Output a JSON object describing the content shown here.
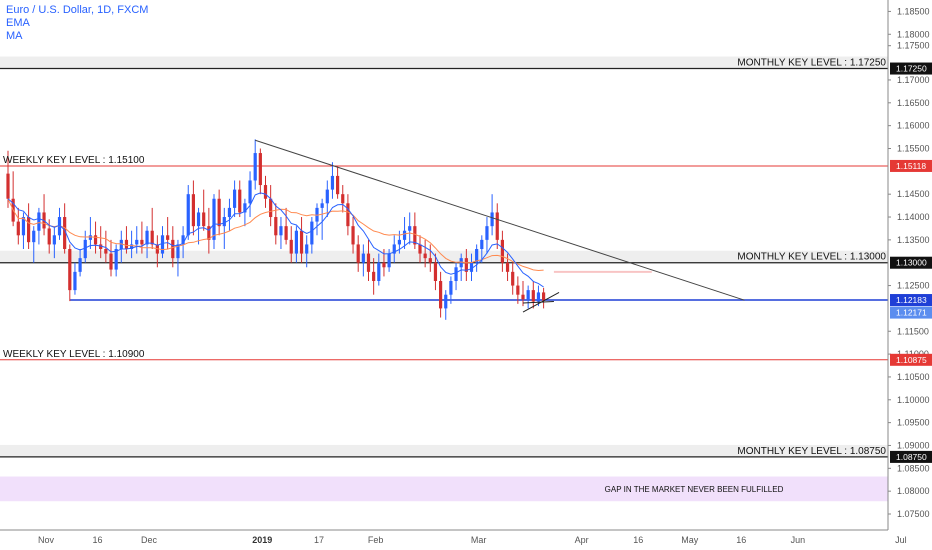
{
  "legend": {
    "symbol": "Euro / U.S. Dollar, 1D, FXCM",
    "ema": "EMA",
    "ma": "MA"
  },
  "colors": {
    "up": "#2962ff",
    "down": "#d32f2f",
    "ema": "#2962ff",
    "ma": "#ff8a50",
    "weekly_line": "#e53935",
    "monthly_line": "#222222",
    "blue_line": "#1f3fd6",
    "trendline": "#444444",
    "band": "#eeeeee",
    "gap_band": "#f1e0fb"
  },
  "chart_data": {
    "type": "candlestick",
    "symbol": "Euro / U.S. Dollar",
    "timeframe": "1D",
    "source": "FXCM",
    "ylim": [
      1.0715,
      1.1875
    ],
    "y_ticks": [
      1.185,
      1.18,
      1.1775,
      1.17,
      1.165,
      1.16,
      1.155,
      1.145,
      1.14,
      1.135,
      1.125,
      1.115,
      1.11,
      1.105,
      1.1,
      1.095,
      1.09,
      1.085,
      1.08,
      1.075
    ],
    "y_tick_labels": [
      "1.18500",
      "1.18000",
      "1.17500",
      "1.17000",
      "1.16500",
      "1.16000",
      "1.15500",
      "1.14500",
      "1.14000",
      "1.13500",
      "1.12500",
      "1.11500",
      "1.11000",
      "1.10500",
      "1.10000",
      "1.09500",
      "1.09000",
      "1.08500",
      "1.08000",
      "1.07500"
    ],
    "x_ticks": [
      {
        "label": "Nov",
        "bar": 0
      },
      {
        "label": "16",
        "bar": 10
      },
      {
        "label": "Dec",
        "bar": 20
      },
      {
        "label": "2019",
        "bar": 42,
        "bold": true
      },
      {
        "label": "17",
        "bar": 53
      },
      {
        "label": "Feb",
        "bar": 64
      },
      {
        "label": "Mar",
        "bar": 84
      },
      {
        "label": "Apr",
        "bar": 104
      },
      {
        "label": "16",
        "bar": 115
      },
      {
        "label": "May",
        "bar": 125
      },
      {
        "label": "16",
        "bar": 135
      },
      {
        "label": "Jun",
        "bar": 146
      },
      {
        "label": "Jul",
        "bar": 166
      }
    ],
    "price_badges": [
      {
        "label": "1.17250",
        "value": 1.1725,
        "color": "#111111"
      },
      {
        "label": "1.15118",
        "value": 1.15118,
        "color": "#e53935"
      },
      {
        "label": "1.13000",
        "value": 1.13,
        "color": "#111111"
      },
      {
        "label": "1.12183",
        "value": 1.12183,
        "color": "#1f3fd6"
      },
      {
        "label": "1.12171",
        "value": 1.12171,
        "color": "#5b8def"
      },
      {
        "label": "1.10875",
        "value": 1.10875,
        "color": "#e53935"
      },
      {
        "label": "1.08750",
        "value": 1.0875,
        "color": "#111111"
      }
    ],
    "levels": [
      {
        "label": "MONTHLY KEY LEVEL : 1.17250",
        "value": 1.1725,
        "kind": "monthly",
        "align": "right"
      },
      {
        "label": "WEEKLY KEY LEVEL : 1.15100",
        "value": 1.15118,
        "kind": "weekly",
        "align": "left"
      },
      {
        "label": "MONTHLY KEY LEVEL : 1.13000",
        "value": 1.13,
        "kind": "monthly",
        "align": "right"
      },
      {
        "label": "WEEKLY KEY LEVEL : 1.10900",
        "value": 1.10875,
        "kind": "weekly",
        "align": "left"
      },
      {
        "label": "MONTHLY KEY LEVEL : 1.08750",
        "value": 1.0875,
        "kind": "monthly",
        "align": "right"
      }
    ],
    "support_level": {
      "value": 1.12183,
      "from_bar": 12
    },
    "gap_zone": {
      "label": "GAP IN THE MARKET NEVER BEEN FULFILLED",
      "top": 1.0832,
      "bottom": 1.0778
    },
    "trendline": {
      "start": {
        "bar": 48,
        "price": 1.1568
      },
      "end": {
        "bar": 143,
        "price": 1.1218
      }
    },
    "ema_projection": {
      "from_bar": 106,
      "to_bar": 125,
      "price": 1.128
    },
    "small_wedge": {
      "p1": {
        "bar": 100,
        "price": 1.1192
      },
      "p2": {
        "bar": 107,
        "price": 1.1235
      },
      "p3": {
        "bar": 100,
        "price": 1.1192
      },
      "p4": {
        "bar": 106,
        "price": 1.1215
      }
    },
    "candles": [
      [
        1.1495,
        1.1545,
        1.142,
        1.144
      ],
      [
        1.144,
        1.15,
        1.138,
        1.139
      ],
      [
        1.139,
        1.142,
        1.134,
        1.136
      ],
      [
        1.136,
        1.141,
        1.133,
        1.14
      ],
      [
        1.14,
        1.143,
        1.133,
        1.1345
      ],
      [
        1.1345,
        1.138,
        1.13,
        1.137
      ],
      [
        1.137,
        1.142,
        1.134,
        1.141
      ],
      [
        1.141,
        1.145,
        1.136,
        1.1375
      ],
      [
        1.1375,
        1.1395,
        1.132,
        1.134
      ],
      [
        1.134,
        1.138,
        1.131,
        1.136
      ],
      [
        1.136,
        1.142,
        1.135,
        1.14
      ],
      [
        1.14,
        1.143,
        1.132,
        1.133
      ],
      [
        1.133,
        1.134,
        1.1216,
        1.124
      ],
      [
        1.124,
        1.13,
        1.123,
        1.128
      ],
      [
        1.128,
        1.133,
        1.127,
        1.131
      ],
      [
        1.131,
        1.137,
        1.13,
        1.135
      ],
      [
        1.135,
        1.14,
        1.133,
        1.136
      ],
      [
        1.136,
        1.139,
        1.132,
        1.134
      ],
      [
        1.134,
        1.138,
        1.131,
        1.133
      ],
      [
        1.133,
        1.137,
        1.13,
        1.132
      ],
      [
        1.132,
        1.135,
        1.127,
        1.1285
      ],
      [
        1.1285,
        1.134,
        1.127,
        1.133
      ],
      [
        1.133,
        1.137,
        1.13,
        1.135
      ],
      [
        1.135,
        1.138,
        1.132,
        1.133
      ],
      [
        1.133,
        1.137,
        1.131,
        1.134
      ],
      [
        1.134,
        1.138,
        1.132,
        1.135
      ],
      [
        1.135,
        1.139,
        1.132,
        1.134
      ],
      [
        1.134,
        1.138,
        1.131,
        1.137
      ],
      [
        1.137,
        1.142,
        1.133,
        1.134
      ],
      [
        1.134,
        1.136,
        1.129,
        1.132
      ],
      [
        1.132,
        1.138,
        1.131,
        1.136
      ],
      [
        1.136,
        1.14,
        1.133,
        1.135
      ],
      [
        1.135,
        1.138,
        1.129,
        1.131
      ],
      [
        1.131,
        1.135,
        1.127,
        1.134
      ],
      [
        1.134,
        1.138,
        1.131,
        1.136
      ],
      [
        1.136,
        1.147,
        1.135,
        1.145
      ],
      [
        1.145,
        1.148,
        1.136,
        1.138
      ],
      [
        1.138,
        1.142,
        1.134,
        1.141
      ],
      [
        1.141,
        1.146,
        1.137,
        1.138
      ],
      [
        1.138,
        1.142,
        1.132,
        1.135
      ],
      [
        1.135,
        1.145,
        1.133,
        1.144
      ],
      [
        1.144,
        1.146,
        1.136,
        1.138
      ],
      [
        1.138,
        1.142,
        1.133,
        1.14
      ],
      [
        1.14,
        1.144,
        1.137,
        1.142
      ],
      [
        1.142,
        1.148,
        1.14,
        1.146
      ],
      [
        1.146,
        1.148,
        1.14,
        1.141
      ],
      [
        1.141,
        1.144,
        1.138,
        1.143
      ],
      [
        1.143,
        1.15,
        1.14,
        1.148
      ],
      [
        1.148,
        1.157,
        1.146,
        1.154
      ],
      [
        1.154,
        1.155,
        1.145,
        1.147
      ],
      [
        1.147,
        1.149,
        1.142,
        1.144
      ],
      [
        1.144,
        1.147,
        1.138,
        1.14
      ],
      [
        1.14,
        1.143,
        1.134,
        1.136
      ],
      [
        1.136,
        1.14,
        1.133,
        1.138
      ],
      [
        1.138,
        1.142,
        1.134,
        1.135
      ],
      [
        1.135,
        1.138,
        1.13,
        1.132
      ],
      [
        1.132,
        1.138,
        1.13,
        1.137
      ],
      [
        1.137,
        1.14,
        1.13,
        1.132
      ],
      [
        1.132,
        1.136,
        1.129,
        1.134
      ],
      [
        1.134,
        1.14,
        1.132,
        1.139
      ],
      [
        1.139,
        1.143,
        1.136,
        1.142
      ],
      [
        1.142,
        1.144,
        1.135,
        1.143
      ],
      [
        1.143,
        1.148,
        1.14,
        1.146
      ],
      [
        1.146,
        1.152,
        1.144,
        1.149
      ],
      [
        1.149,
        1.151,
        1.144,
        1.145
      ],
      [
        1.145,
        1.147,
        1.141,
        1.143
      ],
      [
        1.143,
        1.145,
        1.136,
        1.138
      ],
      [
        1.138,
        1.14,
        1.132,
        1.134
      ],
      [
        1.134,
        1.136,
        1.128,
        1.13
      ],
      [
        1.13,
        1.134,
        1.127,
        1.132
      ],
      [
        1.132,
        1.135,
        1.126,
        1.128
      ],
      [
        1.128,
        1.131,
        1.123,
        1.126
      ],
      [
        1.126,
        1.132,
        1.125,
        1.13
      ],
      [
        1.13,
        1.133,
        1.127,
        1.129
      ],
      [
        1.129,
        1.133,
        1.128,
        1.132
      ],
      [
        1.132,
        1.136,
        1.13,
        1.134
      ],
      [
        1.134,
        1.137,
        1.132,
        1.135
      ],
      [
        1.135,
        1.14,
        1.133,
        1.137
      ],
      [
        1.137,
        1.141,
        1.134,
        1.138
      ],
      [
        1.138,
        1.141,
        1.133,
        1.134
      ],
      [
        1.134,
        1.136,
        1.13,
        1.132
      ],
      [
        1.132,
        1.135,
        1.129,
        1.131
      ],
      [
        1.131,
        1.134,
        1.128,
        1.13
      ],
      [
        1.13,
        1.132,
        1.124,
        1.126
      ],
      [
        1.126,
        1.128,
        1.118,
        1.12
      ],
      [
        1.12,
        1.124,
        1.1175,
        1.123
      ],
      [
        1.123,
        1.127,
        1.121,
        1.126
      ],
      [
        1.126,
        1.13,
        1.124,
        1.129
      ],
      [
        1.129,
        1.132,
        1.126,
        1.131
      ],
      [
        1.131,
        1.133,
        1.126,
        1.128
      ],
      [
        1.128,
        1.132,
        1.126,
        1.13
      ],
      [
        1.13,
        1.134,
        1.128,
        1.133
      ],
      [
        1.133,
        1.136,
        1.13,
        1.135
      ],
      [
        1.135,
        1.14,
        1.132,
        1.138
      ],
      [
        1.138,
        1.145,
        1.136,
        1.141
      ],
      [
        1.141,
        1.143,
        1.133,
        1.135
      ],
      [
        1.135,
        1.137,
        1.128,
        1.13
      ],
      [
        1.13,
        1.132,
        1.126,
        1.128
      ],
      [
        1.128,
        1.13,
        1.123,
        1.125
      ],
      [
        1.125,
        1.127,
        1.121,
        1.123
      ],
      [
        1.123,
        1.126,
        1.1205,
        1.122
      ],
      [
        1.122,
        1.125,
        1.12,
        1.124
      ],
      [
        1.124,
        1.126,
        1.12,
        1.1215
      ],
      [
        1.1215,
        1.125,
        1.1205,
        1.1235
      ],
      [
        1.1235,
        1.1245,
        1.12,
        1.1217
      ]
    ]
  }
}
